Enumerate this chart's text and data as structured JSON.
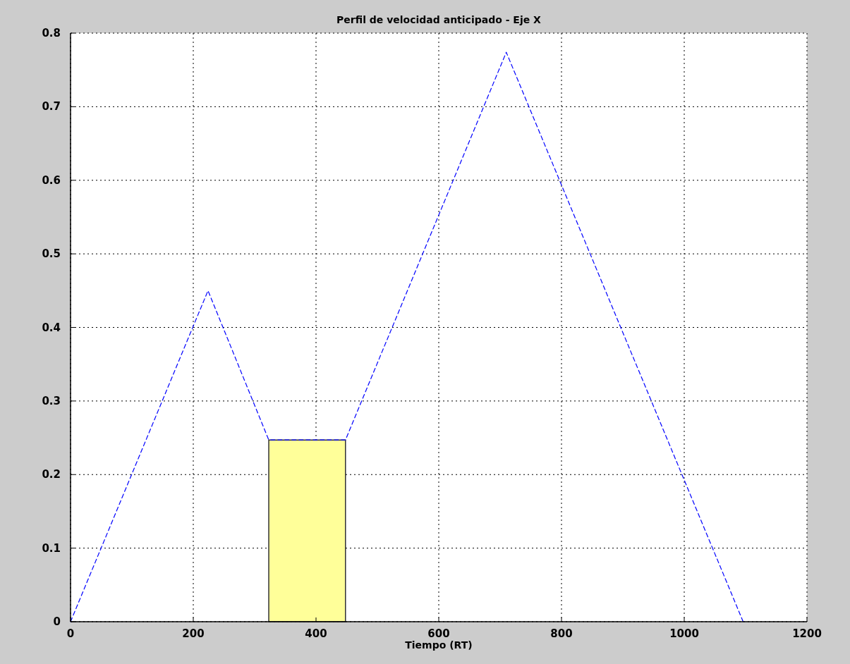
{
  "chart_data": {
    "type": "line",
    "title": "Perfil de velocidad anticipado - Eje X",
    "xlabel": "Tiempo (RT)",
    "series": [
      {
        "type": "area",
        "color": "#ffff99",
        "x": [
          323,
          448
        ],
        "values": [
          0.247,
          0.247
        ]
      },
      {
        "color": "#0000ff",
        "x": [
          0,
          224,
          323,
          448,
          710,
          1096
        ],
        "values": [
          0,
          0.45,
          0.247,
          0.247,
          0.774,
          0
        ]
      }
    ],
    "xlim": [
      0,
      1200
    ],
    "xticks": [
      0,
      200,
      400,
      600,
      800,
      1000,
      1200
    ],
    "ylim": [
      0,
      0.8
    ],
    "yticks": [
      0,
      0.1,
      0.2,
      0.3,
      0.4,
      0.5,
      0.6,
      0.7,
      0.8
    ],
    "grid": true,
    "line_style": "dashed",
    "marker": "none"
  }
}
